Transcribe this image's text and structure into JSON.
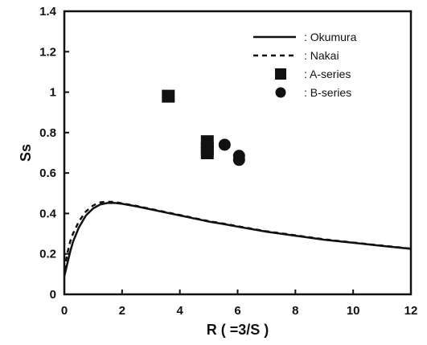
{
  "chart_data": {
    "type": "scatter",
    "title": "",
    "xlabel": "R ( =3/S )",
    "ylabel": "Ss",
    "xlim": [
      0,
      12
    ],
    "ylim": [
      0,
      1.4
    ],
    "x_ticks": [
      "0",
      "2",
      "4",
      "6",
      "8",
      "10",
      "12"
    ],
    "y_ticks": [
      "0",
      "0.2",
      "0.4",
      "0.6",
      "0.8",
      "1",
      "1.2",
      "1.4"
    ],
    "grid": false,
    "legend_position": "top-right",
    "series": [
      {
        "name": ": Okumura",
        "kind": "line",
        "style": "solid",
        "x": [
          0,
          0.1,
          0.2,
          0.3,
          0.5,
          0.75,
          1.0,
          1.25,
          1.5,
          1.75,
          2.0,
          2.5,
          3,
          3.5,
          4,
          4.5,
          5,
          5.5,
          6,
          7,
          8,
          9,
          10,
          11,
          12
        ],
        "y": [
          0.09,
          0.15,
          0.21,
          0.26,
          0.33,
          0.39,
          0.425,
          0.445,
          0.452,
          0.452,
          0.448,
          0.435,
          0.42,
          0.405,
          0.39,
          0.375,
          0.36,
          0.348,
          0.335,
          0.31,
          0.29,
          0.27,
          0.255,
          0.24,
          0.225
        ]
      },
      {
        "name": ": Nakai",
        "kind": "line",
        "style": "dashed",
        "x": [
          0,
          0.1,
          0.2,
          0.3,
          0.5,
          0.75,
          1.0,
          1.25,
          1.5,
          1.75,
          2.0,
          2.5,
          3,
          3.5,
          4,
          4.5,
          5,
          5.5,
          6,
          7,
          8,
          9,
          10,
          11,
          12
        ],
        "y": [
          0.12,
          0.2,
          0.26,
          0.3,
          0.36,
          0.41,
          0.44,
          0.455,
          0.458,
          0.456,
          0.45,
          0.437,
          0.422,
          0.407,
          0.392,
          0.377,
          0.362,
          0.35,
          0.337,
          0.312,
          0.292,
          0.272,
          0.256,
          0.241,
          0.226
        ]
      },
      {
        "name": ": A-series",
        "kind": "points",
        "marker": "square",
        "x": [
          3.6,
          4.95,
          4.95,
          4.95
        ],
        "y": [
          0.98,
          0.755,
          0.72,
          0.7
        ]
      },
      {
        "name": ": B-series",
        "kind": "points",
        "marker": "circle",
        "x": [
          5.55,
          6.05,
          6.05
        ],
        "y": [
          0.74,
          0.685,
          0.665
        ]
      }
    ]
  }
}
